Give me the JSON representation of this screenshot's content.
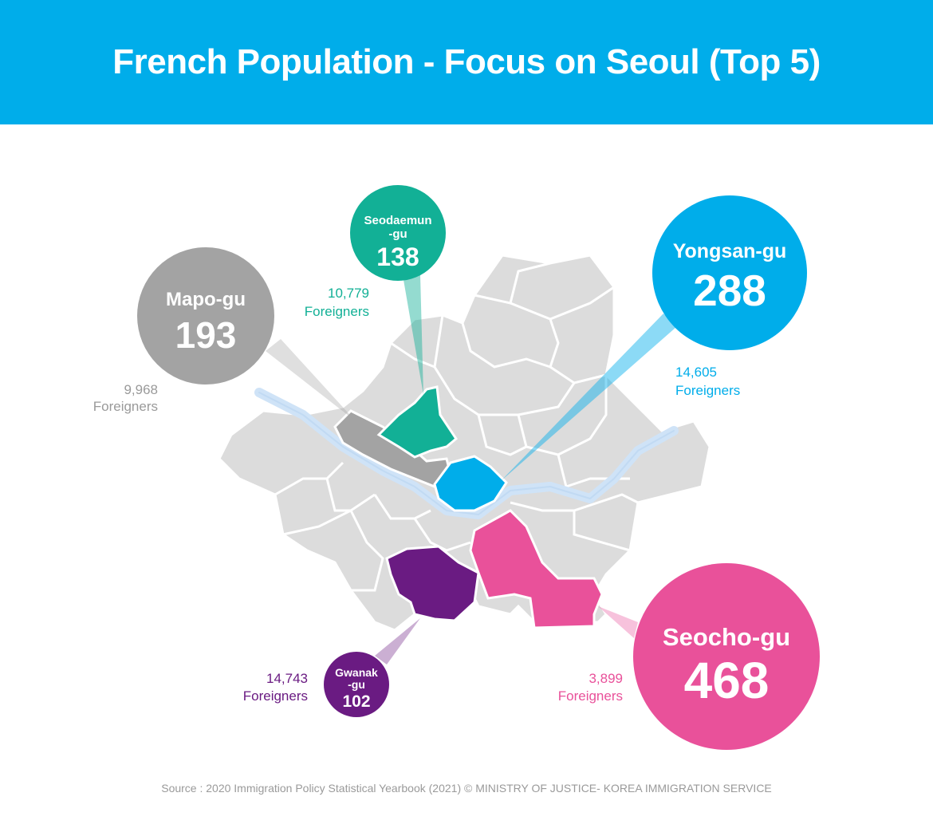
{
  "title": "French Population - Focus on Seoul (Top 5)",
  "districts": [
    {
      "id": "mapo",
      "name": "Mapo-gu",
      "french_population": "193",
      "foreigners": "9,968",
      "foreigners_label": "Foreigners",
      "color": "#a3a3a3"
    },
    {
      "id": "seodaemun",
      "name_line1": "Seodaemun",
      "name_line2": "-gu",
      "french_population": "138",
      "foreigners": "10,779",
      "foreigners_label": "Foreigners",
      "color": "#12b096"
    },
    {
      "id": "yongsan",
      "name": "Yongsan-gu",
      "french_population": "288",
      "foreigners": "14,605",
      "foreigners_label": "Foreigners",
      "color": "#00adea"
    },
    {
      "id": "gwanak",
      "name_line1": "Gwanak",
      "name_line2": "-gu",
      "french_population": "102",
      "foreigners": "14,743",
      "foreigners_label": "Foreigners",
      "color": "#6a1b82"
    },
    {
      "id": "seocho",
      "name": "Seocho-gu",
      "french_population": "468",
      "foreigners": "3,899",
      "foreigners_label": "Foreigners",
      "color": "#e9519a"
    }
  ],
  "map_base_color": "#dcdcdc",
  "river_color": "#cfe3f7",
  "source": "Source : 2020 Immigration Policy Statistical Yearbook (2021) © MINISTRY OF JUSTICE- KOREA IMMIGRATION SERVICE"
}
